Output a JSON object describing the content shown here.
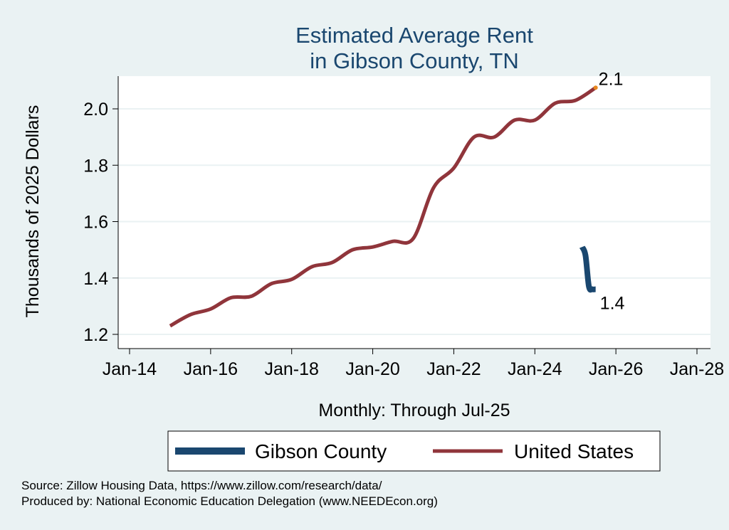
{
  "chart_data": {
    "type": "line",
    "title": [
      "Estimated Average Rent",
      "in Gibson County, TN"
    ],
    "xlabel": "Monthly: Through Jul-25",
    "ylabel": "Thousands of 2025 Dollars",
    "x_ticks": [
      "Jan-14",
      "Jan-16",
      "Jan-18",
      "Jan-20",
      "Jan-22",
      "Jan-24",
      "Jan-26",
      "Jan-28"
    ],
    "y_ticks": [
      "1.2",
      "1.4",
      "1.6",
      "1.8",
      "2.0"
    ],
    "ylim": [
      1.2,
      2.1
    ],
    "grid": "horizontal",
    "legend_position": "bottom",
    "series": [
      {
        "name": "Gibson County",
        "color": "#1a476f",
        "points": [
          {
            "x": "2025-03",
            "y": 1.51
          },
          {
            "x": "2025-04",
            "y": 1.48
          },
          {
            "x": "2025-05",
            "y": 1.37
          },
          {
            "x": "2025-06",
            "y": 1.36
          },
          {
            "x": "2025-07",
            "y": 1.36
          }
        ],
        "end_label": "1.4"
      },
      {
        "name": "United States",
        "color": "#90353b",
        "points": [
          {
            "x": "2015-01",
            "y": 1.23
          },
          {
            "x": "2015-07",
            "y": 1.27
          },
          {
            "x": "2016-01",
            "y": 1.29
          },
          {
            "x": "2016-07",
            "y": 1.33
          },
          {
            "x": "2017-01",
            "y": 1.335
          },
          {
            "x": "2017-07",
            "y": 1.38
          },
          {
            "x": "2018-01",
            "y": 1.395
          },
          {
            "x": "2018-07",
            "y": 1.44
          },
          {
            "x": "2019-01",
            "y": 1.455
          },
          {
            "x": "2019-07",
            "y": 1.5
          },
          {
            "x": "2020-01",
            "y": 1.51
          },
          {
            "x": "2020-07",
            "y": 1.53
          },
          {
            "x": "2021-01",
            "y": 1.54
          },
          {
            "x": "2021-07",
            "y": 1.72
          },
          {
            "x": "2022-01",
            "y": 1.79
          },
          {
            "x": "2022-07",
            "y": 1.9
          },
          {
            "x": "2023-01",
            "y": 1.9
          },
          {
            "x": "2023-07",
            "y": 1.96
          },
          {
            "x": "2024-01",
            "y": 1.96
          },
          {
            "x": "2024-07",
            "y": 2.02
          },
          {
            "x": "2025-01",
            "y": 2.03
          },
          {
            "x": "2025-07",
            "y": 2.075
          }
        ],
        "end_label": "2.1",
        "end_marker_color": "#e8871e"
      }
    ]
  },
  "notes": [
    "Source: Zillow Housing Data, https://www.zillow.com/research/data/",
    "Produced by: National Economic Education Delegation (www.NEEDEcon.org)"
  ]
}
